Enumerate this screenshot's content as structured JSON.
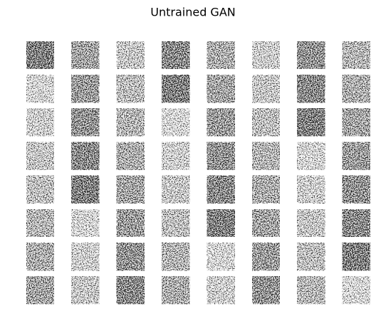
{
  "title": "Untrained GAN"
}
